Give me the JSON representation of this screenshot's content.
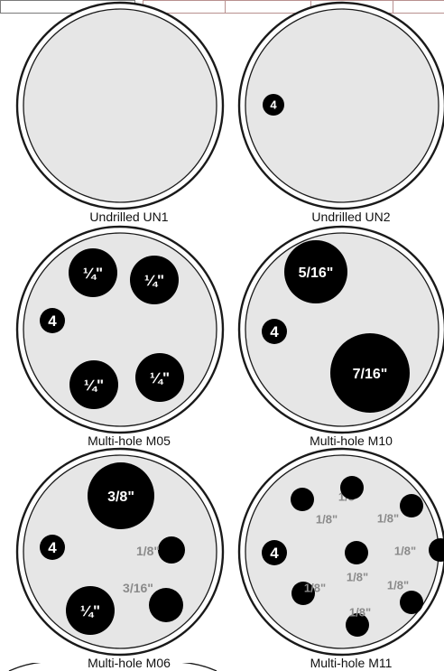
{
  "plates": [
    {
      "name": "Undrilled UN1",
      "marks": []
    },
    {
      "name": "Undrilled UN2",
      "marks": [
        {
          "label": "4",
          "kind": "small"
        }
      ]
    },
    {
      "name": "Multi-hole M05",
      "marks": [
        {
          "label": "¼\"",
          "kind": "hole"
        },
        {
          "label": "¼\"",
          "kind": "hole"
        },
        {
          "label": "4",
          "kind": "badge"
        },
        {
          "label": "¼\"",
          "kind": "hole"
        },
        {
          "label": "¼\"",
          "kind": "hole"
        }
      ]
    },
    {
      "name": "Multi-hole M10",
      "marks": [
        {
          "label": "5/16\"",
          "kind": "hole"
        },
        {
          "label": "4",
          "kind": "badge"
        },
        {
          "label": "7/16\"",
          "kind": "hole"
        }
      ]
    },
    {
      "name": "Multi-hole M06",
      "marks": [
        {
          "label": "3/8\"",
          "kind": "hole"
        },
        {
          "label": "4",
          "kind": "badge"
        },
        {
          "label": "1/8\"",
          "kind": "outside"
        },
        {
          "label": "3/16\"",
          "kind": "outside"
        },
        {
          "label": "¼\"",
          "kind": "hole"
        }
      ]
    },
    {
      "name": "Multi-hole M11",
      "marks": [
        {
          "label": "1/8\"",
          "kind": "outside"
        },
        {
          "label": "1/8\"",
          "kind": "outside"
        },
        {
          "label": "1/8\"",
          "kind": "outside"
        },
        {
          "label": "4",
          "kind": "badge"
        },
        {
          "label": "1/8\"",
          "kind": "outside"
        },
        {
          "label": "1/8\"",
          "kind": "outside"
        },
        {
          "label": "1/8\"",
          "kind": "outside"
        },
        {
          "label": "1/8\"",
          "kind": "outside"
        },
        {
          "label": "1/8\"",
          "kind": "outside"
        }
      ]
    }
  ],
  "colors": {
    "plate_face": "#e6e6e6",
    "rim": "#1a1a1a",
    "hole": "#000000",
    "hole_label": "#ffffff",
    "size_label": "#8a8a8a"
  }
}
